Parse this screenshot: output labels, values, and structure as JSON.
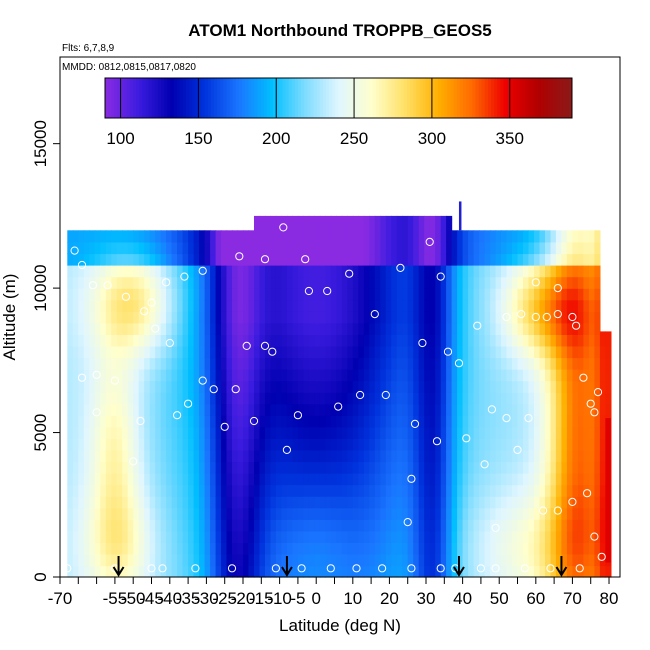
{
  "chart_data": {
    "type": "heatmap",
    "title": "ATOM1 Northbound TROPPB_GEOS5",
    "notes": {
      "flights": "Flts: 6,7,8,9",
      "dates": "MMDD: 0812,0815,0817,0820"
    },
    "xlabel": "Latitude (deg N)",
    "ylabel": "Altitude (m)",
    "xlim": [
      -70,
      83
    ],
    "ylim": [
      0,
      18000
    ],
    "x_ticks": [
      -70,
      -55,
      -40,
      -25,
      -10,
      10,
      20,
      30,
      40,
      50,
      60,
      70,
      80
    ],
    "x_tick_labels": [
      "-70",
      "-55",
      "-40",
      "-25",
      "-10",
      "10",
      "20",
      "30",
      "40",
      "50",
      "60",
      "70",
      "80"
    ],
    "x_minor_ticks": [
      -65,
      -60,
      -50,
      -45,
      -35,
      -30,
      -20,
      -15,
      -5,
      0,
      5,
      15,
      25,
      35,
      45,
      55,
      65,
      75
    ],
    "x_minor_labels": [
      "",
      "",
      "-50",
      "-45",
      "-35",
      "-30",
      "-20",
      "-15",
      "-5",
      "0",
      "",
      "",
      "",
      "",
      "",
      "",
      "",
      ""
    ],
    "y_ticks": [
      0,
      5000,
      10000,
      15000
    ],
    "y_tick_labels": [
      "0",
      "5000",
      "10000",
      "15000"
    ],
    "colorbar": {
      "range": [
        90,
        390
      ],
      "ticks": [
        100,
        150,
        200,
        250,
        300,
        350
      ],
      "tick_labels": [
        "100",
        "150",
        "200",
        "250",
        "300",
        "350"
      ],
      "colors": [
        "#8a2be2",
        "#3d1ce0",
        "#0000b0",
        "#0033dd",
        "#1a75ff",
        "#00bfff",
        "#7fdcff",
        "#e0f6ff",
        "#ffffcc",
        "#ffe066",
        "#ffb000",
        "#ff6a00",
        "#ee0000",
        "#b00000",
        "#8b1a1a"
      ]
    },
    "profile_markers_lat": [
      -54,
      -8,
      39,
      67
    ],
    "grid": false,
    "legend": "colorbar-top"
  }
}
